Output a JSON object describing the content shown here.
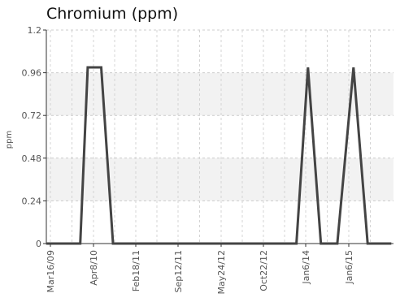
{
  "chart_data": {
    "type": "line",
    "title": "Chromium (ppm)",
    "xlabel": "",
    "ylabel": "ppm",
    "ylim": [
      0,
      1.2
    ],
    "yticks": [
      0,
      0.24,
      0.48,
      0.72,
      0.96,
      1.2
    ],
    "ytick_labels": [
      "0",
      "0.24",
      "0.48",
      "0.72",
      "0.96",
      "1.2"
    ],
    "xticks": [
      "2009-03-16",
      "2010-04-08",
      "2011-02-18",
      "2011-09-12",
      "2012-05-24",
      "2012-10-22",
      "2014-01-06",
      "2015-01-06"
    ],
    "xtick_labels": [
      "Mar16/09",
      "Apr8/10",
      "Feb18/11",
      "Sep12/11",
      "May24/12",
      "Oct22/12",
      "Jan6/14",
      "Jan6/15"
    ],
    "grid": true,
    "band_color": "#f2f2f2",
    "line_color": "#444444",
    "series": [
      {
        "values": [
          0,
          0,
          0.99,
          0.99,
          0,
          0,
          0,
          0.99,
          0,
          0,
          0.99,
          0,
          0
        ]
      }
    ]
  }
}
